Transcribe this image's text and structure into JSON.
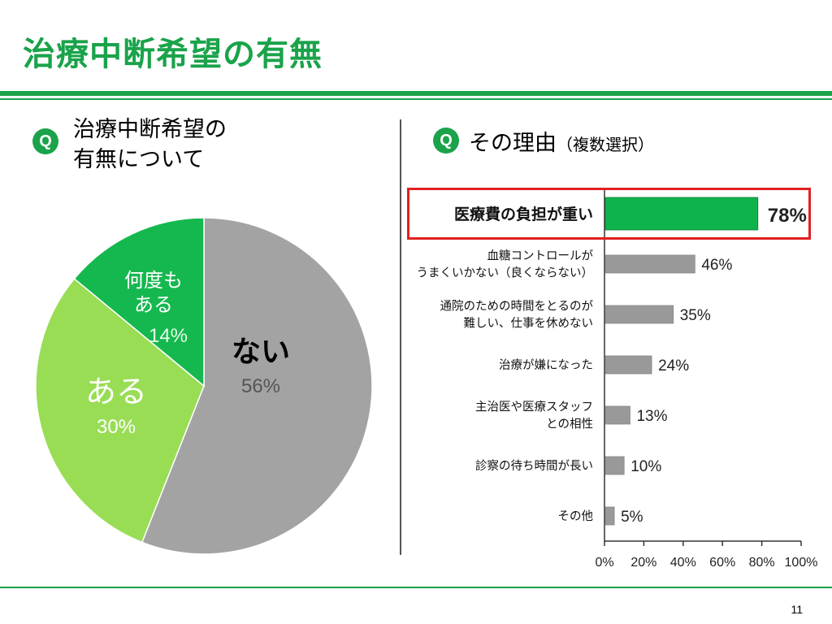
{
  "slide": {
    "title": "治療中断希望の有無",
    "page_number": "11"
  },
  "left_question": {
    "badge": "Q",
    "line1": "治療中断希望の",
    "line2": "有無について"
  },
  "right_question": {
    "badge": "Q",
    "text": "その理由",
    "note": "（複数選択）"
  },
  "colors": {
    "brand_green": "#1aa34a",
    "slice_none": "#a3a3a3",
    "slice_yes": "#99dd55",
    "slice_often": "#15b84f",
    "bar_gray": "#999999",
    "bar_highlight": "#0fb34e",
    "highlight_border": "#e02020"
  },
  "chart_data": [
    {
      "type": "pie",
      "slices": [
        {
          "label": "ない",
          "value": 56,
          "display": "56%",
          "color": "#a3a3a3"
        },
        {
          "label": "ある",
          "value": 30,
          "display": "30%",
          "color": "#99dd55"
        },
        {
          "label": "何度も\nある",
          "value": 14,
          "display": "14%",
          "color": "#15b84f"
        }
      ]
    },
    {
      "type": "bar",
      "orientation": "horizontal",
      "categories": [
        "医療費の負担が重い",
        "血糖コントロールが\nうまくいかない（良くならない）",
        "通院のための時間をとるのが\n難しい、仕事を休めない",
        "治療が嫌になった",
        "主治医や医療スタッフ\nとの相性",
        "診察の待ち時間が長い",
        "その他"
      ],
      "values": [
        78,
        46,
        35,
        24,
        13,
        10,
        5
      ],
      "value_labels": [
        "78%",
        "46%",
        "35%",
        "24%",
        "13%",
        "10%",
        "5%"
      ],
      "highlighted_index": 0,
      "xlim": [
        0,
        100
      ],
      "x_ticks": [
        "0%",
        "20%",
        "40%",
        "60%",
        "80%",
        "100%"
      ],
      "grid": false
    }
  ]
}
